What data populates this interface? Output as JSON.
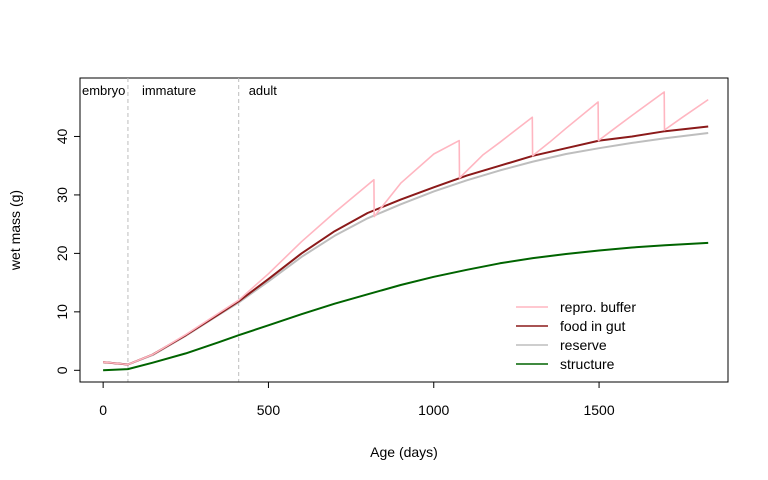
{
  "chart_data": {
    "type": "line",
    "xlabel": "Age (days)",
    "ylabel": "wet mass (g)",
    "xlim": [
      -70,
      1890
    ],
    "ylim": [
      -2,
      50
    ],
    "xticks": [
      0,
      500,
      1000,
      1500
    ],
    "yticks": [
      0,
      10,
      20,
      30,
      40
    ],
    "grid": false,
    "legend_position": "bottom-right",
    "stage_boundaries": [
      75,
      410
    ],
    "stage_labels": [
      "embryo",
      "immature",
      "adult"
    ],
    "series": [
      {
        "name": "repro. buffer",
        "color": "#FFB6C1",
        "x": [
          0,
          75,
          150,
          250,
          350,
          410,
          500,
          600,
          700,
          819,
          820,
          900,
          1000,
          1077,
          1078,
          1150,
          1200,
          1298,
          1299,
          1350,
          1400,
          1497,
          1498,
          1550,
          1600,
          1697,
          1698,
          1750,
          1830
        ],
        "y": [
          1.4,
          1.0,
          2.7,
          6.1,
          9.8,
          12.0,
          16.5,
          22.0,
          27.0,
          32.6,
          26.3,
          32.0,
          37.0,
          39.3,
          32.9,
          36.9,
          39.0,
          43.3,
          36.7,
          39.0,
          41.4,
          45.9,
          39.3,
          41.5,
          43.6,
          47.6,
          41.1,
          43.2,
          46.3
        ]
      },
      {
        "name": "food in gut",
        "color": "#8B1A1A",
        "x": [
          0,
          75,
          150,
          250,
          350,
          410,
          500,
          600,
          700,
          800,
          900,
          1000,
          1100,
          1200,
          1300,
          1400,
          1500,
          1600,
          1700,
          1830
        ],
        "y": [
          1.4,
          1.0,
          2.7,
          6.0,
          9.6,
          11.8,
          15.6,
          20.0,
          23.8,
          26.9,
          29.2,
          31.3,
          33.3,
          35.0,
          36.7,
          38.0,
          39.3,
          40.0,
          40.9,
          41.7
        ]
      },
      {
        "name": "reserve",
        "color": "#BEBEBE",
        "x": [
          0,
          75,
          150,
          250,
          350,
          410,
          500,
          600,
          700,
          800,
          900,
          1000,
          1100,
          1200,
          1300,
          1400,
          1500,
          1600,
          1700,
          1830
        ],
        "y": [
          1.4,
          1.0,
          2.6,
          5.9,
          9.5,
          11.6,
          15.2,
          19.4,
          23.0,
          26.0,
          28.4,
          30.6,
          32.5,
          34.2,
          35.7,
          37.0,
          38.0,
          38.9,
          39.7,
          40.6
        ]
      },
      {
        "name": "structure",
        "color": "#006400",
        "x": [
          0,
          75,
          150,
          250,
          350,
          410,
          500,
          600,
          700,
          800,
          900,
          1000,
          1100,
          1200,
          1300,
          1400,
          1500,
          1600,
          1700,
          1830
        ],
        "y": [
          0.0,
          0.2,
          1.3,
          2.9,
          4.8,
          6.0,
          7.7,
          9.6,
          11.4,
          13.0,
          14.6,
          16.0,
          17.2,
          18.3,
          19.2,
          19.9,
          20.5,
          21.0,
          21.4,
          21.8
        ]
      }
    ],
    "legend": [
      "repro. buffer",
      "food in gut",
      "reserve",
      "structure"
    ]
  }
}
